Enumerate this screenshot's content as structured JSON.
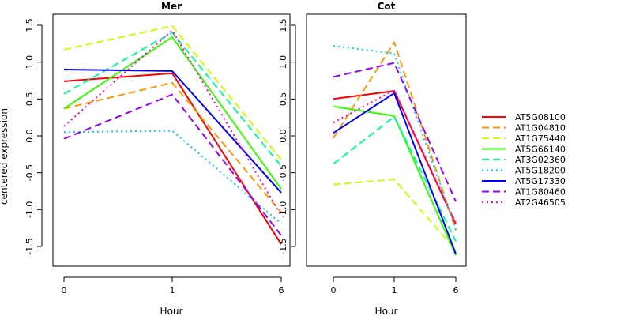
{
  "chart_data": [
    {
      "type": "line",
      "title": "Mer",
      "xlabel": "Hour",
      "ylabel": "centered expression",
      "x": [
        "0",
        "1",
        "6"
      ],
      "ylim": [
        -1.75,
        1.6
      ],
      "yticks": [
        "1.5",
        "1.0",
        "0.5",
        "0.0",
        "-0.5",
        "-1.0",
        "-1.5"
      ],
      "ytick_values": [
        1.5,
        1.0,
        0.5,
        0.0,
        -0.5,
        -1.0,
        -1.5
      ],
      "series": [
        {
          "name": "AT5G08100",
          "values": [
            0.74,
            0.85,
            -1.47
          ]
        },
        {
          "name": "AT1G04810",
          "values": [
            0.37,
            0.72,
            -1.04
          ]
        },
        {
          "name": "AT1G75440",
          "values": [
            1.17,
            1.49,
            -0.32
          ]
        },
        {
          "name": "AT5G66140",
          "values": [
            0.37,
            1.34,
            -0.72
          ]
        },
        {
          "name": "AT3G02360",
          "values": [
            0.57,
            1.4,
            -0.41
          ]
        },
        {
          "name": "AT5G18200",
          "values": [
            0.05,
            0.07,
            -1.19
          ]
        },
        {
          "name": "AT5G17330",
          "values": [
            0.9,
            0.88,
            -0.77
          ]
        },
        {
          "name": "AT1G80460",
          "values": [
            -0.04,
            0.56,
            -1.35
          ]
        },
        {
          "name": "AT2G46505",
          "values": [
            0.13,
            1.43,
            -1.08
          ]
        }
      ]
    },
    {
      "type": "line",
      "title": "Cot",
      "xlabel": "Hour",
      "ylabel": "",
      "x": [
        "0",
        "1",
        "6"
      ],
      "ylim": [
        -1.75,
        1.6
      ],
      "yticks": [
        "1.5",
        "1.0",
        "0.5",
        "0.0",
        "-0.5",
        "-1.0",
        "-1.5"
      ],
      "ytick_values": [
        1.5,
        1.0,
        0.5,
        0.0,
        -0.5,
        -1.0,
        -1.5
      ],
      "series": [
        {
          "name": "AT5G08100",
          "values": [
            0.5,
            0.61,
            -1.2
          ]
        },
        {
          "name": "AT1G04810",
          "values": [
            -0.03,
            1.27,
            -1.28
          ]
        },
        {
          "name": "AT1G75440",
          "values": [
            -0.66,
            -0.59,
            -1.55
          ]
        },
        {
          "name": "AT5G66140",
          "values": [
            0.4,
            0.27,
            -1.62
          ]
        },
        {
          "name": "AT3G02360",
          "values": [
            -0.38,
            0.26,
            -1.43
          ]
        },
        {
          "name": "AT5G18200",
          "values": [
            1.22,
            1.12,
            -1.27
          ]
        },
        {
          "name": "AT5G17330",
          "values": [
            0.04,
            0.58,
            -1.6
          ]
        },
        {
          "name": "AT1G80460",
          "values": [
            0.8,
            0.99,
            -0.89
          ]
        },
        {
          "name": "AT2G46505",
          "values": [
            0.18,
            0.62,
            -1.18
          ]
        }
      ]
    }
  ],
  "legend": {
    "placement": "right",
    "items": [
      {
        "label": "AT5G08100",
        "color": "#ff0000",
        "dash": "solid"
      },
      {
        "label": "AT1G04810",
        "color": "#ff9900",
        "dash": "dashed"
      },
      {
        "label": "AT1G75440",
        "color": "#ccff00",
        "dash": "dashed"
      },
      {
        "label": "AT5G66140",
        "color": "#33ff00",
        "dash": "solid"
      },
      {
        "label": "AT3G02360",
        "color": "#00ff99",
        "dash": "dashed"
      },
      {
        "label": "AT5G18200",
        "color": "#00ccff",
        "dash": "dotted"
      },
      {
        "label": "AT5G17330",
        "color": "#0000ff",
        "dash": "solid"
      },
      {
        "label": "AT1G80460",
        "color": "#9900ff",
        "dash": "dashed"
      },
      {
        "label": "AT2G46505",
        "color": "#ff00cc",
        "dash": "dotted"
      }
    ]
  }
}
